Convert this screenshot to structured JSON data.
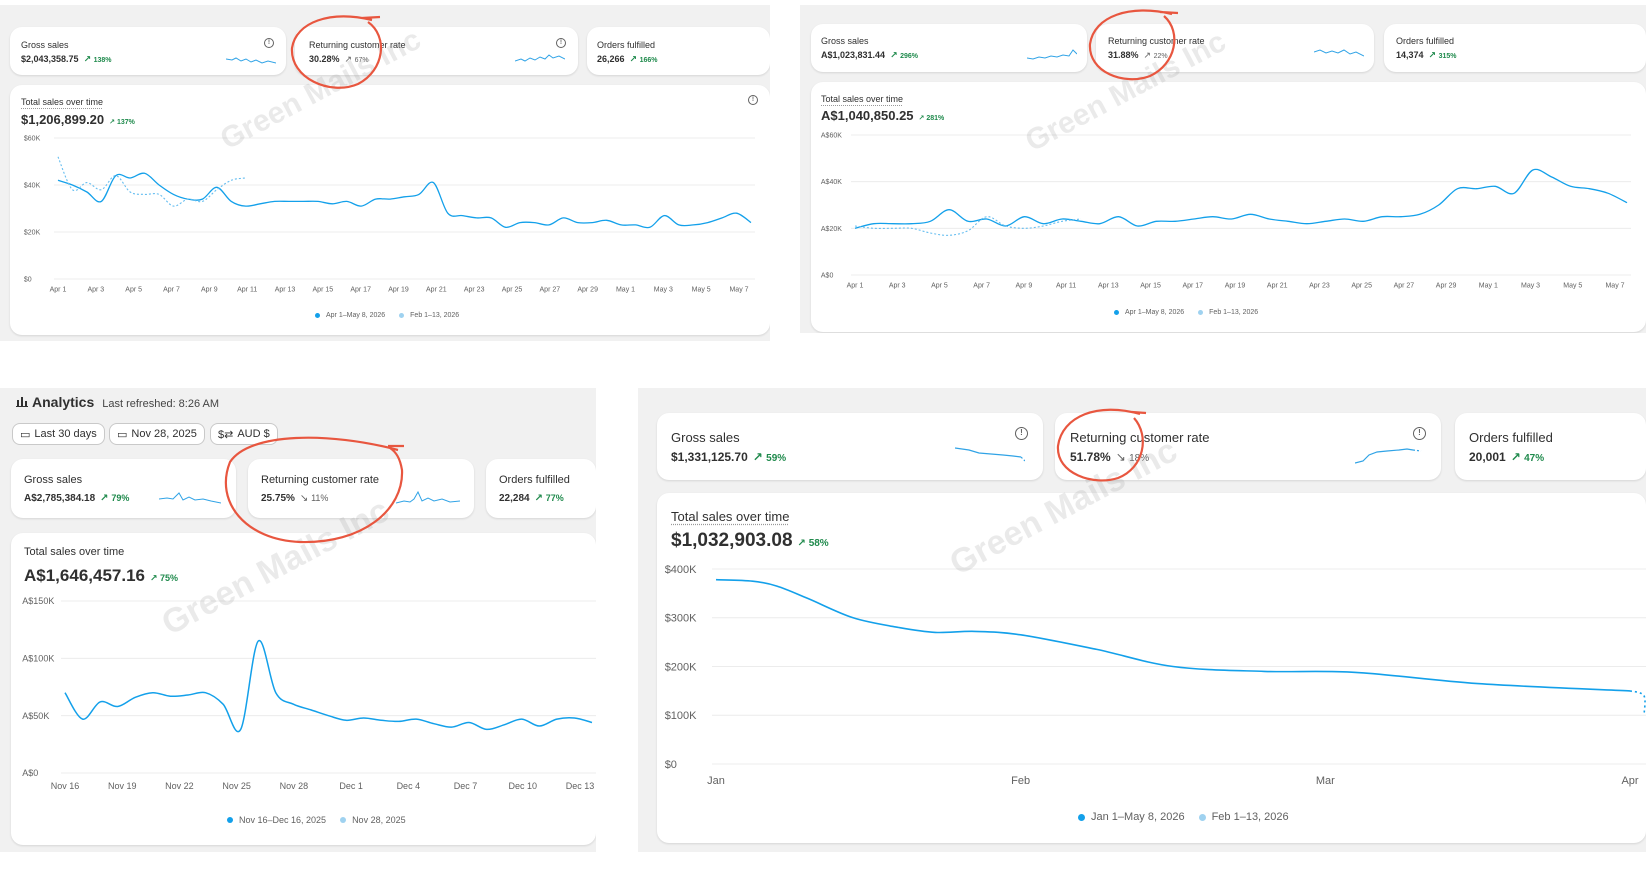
{
  "watermark": "Green Mails Inc",
  "panels": [
    {
      "metrics": [
        {
          "title": "Gross sales",
          "value": "$2,043,358.75",
          "change": "138%",
          "dir": "up"
        },
        {
          "title": "Returning customer rate",
          "value": "30.28%",
          "change": "67%",
          "dir": "up"
        },
        {
          "title": "Orders fulfilled",
          "value": "26,266",
          "change": "166%",
          "dir": "up"
        }
      ],
      "chart": {
        "title": "Total sales over time",
        "total": "$1,206,899.20",
        "change": "137%",
        "legend": [
          "Apr 1–May 8, 2026",
          "Feb 1–13, 2026"
        ]
      },
      "chart_data": {
        "type": "line",
        "title": "Total sales over time",
        "y_ticks": [
          "$60K",
          "$40K",
          "$20K",
          "$0"
        ],
        "ylim": [
          0,
          60000
        ],
        "x_ticks": [
          "Apr 1",
          "Apr 3",
          "Apr 5",
          "Apr 7",
          "Apr 9",
          "Apr 11",
          "Apr 13",
          "Apr 15",
          "Apr 17",
          "Apr 19",
          "Apr 21",
          "Apr 23",
          "Apr 25",
          "Apr 27",
          "Apr 29",
          "May 1",
          "May 3",
          "May 5",
          "May 7"
        ],
        "series": [
          {
            "name": "Apr 1–May 8, 2026",
            "style": "solid",
            "values": [
              42000,
              40000,
              37000,
              33000,
              44000,
              43000,
              45000,
              40000,
              36000,
              34000,
              34000,
              39000,
              33000,
              31000,
              32000,
              33000,
              33000,
              33000,
              33000,
              32000,
              33000,
              31000,
              34000,
              34000,
              35000,
              36000,
              41000,
              28000,
              27000,
              26000,
              26000,
              22000,
              24000,
              24000,
              23000,
              26000,
              24000,
              24000,
              25000,
              23000,
              23000,
              22000,
              27000,
              23000,
              23000,
              24000,
              26000,
              28000,
              24000
            ]
          },
          {
            "name": "Feb 1–13, 2026",
            "style": "dotted",
            "values": [
              52000,
              38000,
              41000,
              38000,
              44000,
              37000,
              36000,
              36000,
              31000,
              34000,
              33000,
              38000,
              42000,
              43000
            ]
          }
        ]
      }
    },
    {
      "metrics": [
        {
          "title": "Gross sales",
          "value": "A$1,023,831.44",
          "change": "296%",
          "dir": "up"
        },
        {
          "title": "Returning customer rate",
          "value": "31.88%",
          "change": "22%",
          "dir": "up"
        },
        {
          "title": "Orders fulfilled",
          "value": "14,374",
          "change": "315%",
          "dir": "up"
        }
      ],
      "chart": {
        "title": "Total sales over time",
        "total": "A$1,040,850.25",
        "change": "281%",
        "legend": [
          "Apr 1–May 8, 2026",
          "Feb 1–13, 2026"
        ]
      },
      "chart_data": {
        "type": "line",
        "title": "Total sales over time",
        "y_ticks": [
          "A$60K",
          "A$40K",
          "A$20K",
          "A$0"
        ],
        "ylim": [
          0,
          60000
        ],
        "x_ticks": [
          "Apr 1",
          "Apr 3",
          "Apr 5",
          "Apr 7",
          "Apr 9",
          "Apr 11",
          "Apr 13",
          "Apr 15",
          "Apr 17",
          "Apr 19",
          "Apr 21",
          "Apr 23",
          "Apr 25",
          "Apr 27",
          "Apr 29",
          "May 1",
          "May 3",
          "May 5",
          "May 7"
        ],
        "series": [
          {
            "name": "Apr 1–May 8, 2026",
            "style": "solid",
            "values": [
              20000,
              22000,
              22000,
              22000,
              23000,
              28000,
              23000,
              24000,
              21000,
              25000,
              22000,
              24000,
              23000,
              22000,
              25000,
              21000,
              23000,
              23000,
              24000,
              25000,
              24000,
              26000,
              24000,
              23000,
              22000,
              23000,
              24000,
              23000,
              25000,
              25000,
              26000,
              30000,
              37000,
              37000,
              38000,
              35000,
              45000,
              42000,
              38000,
              37000,
              35000,
              31000
            ]
          },
          {
            "name": "Feb 1–13, 2026",
            "style": "dotted",
            "values": [
              21000,
              20000,
              20000,
              20000,
              18000,
              17000,
              19000,
              25000,
              21000,
              20000,
              21000,
              23000,
              24000
            ]
          }
        ]
      }
    },
    {
      "header": {
        "title": "Analytics",
        "refreshed": "Last refreshed: 8:26 AM"
      },
      "filters": [
        {
          "icon": "calendar-icon",
          "label": "Last 30 days"
        },
        {
          "icon": "calendar-compare-icon",
          "label": "Nov 28, 2025"
        },
        {
          "icon": "currency-icon",
          "label": "AUD $"
        }
      ],
      "metrics": [
        {
          "title": "Gross sales",
          "value": "A$2,785,384.18",
          "change": "79%",
          "dir": "up"
        },
        {
          "title": "Returning customer rate",
          "value": "25.75%",
          "change": "11%",
          "dir": "down"
        },
        {
          "title": "Orders fulfilled",
          "value": "22,284",
          "change": "77%",
          "dir": "up"
        }
      ],
      "chart": {
        "title": "Total sales over time",
        "total": "A$1,646,457.16",
        "change": "75%",
        "legend": [
          "Nov 16–Dec 16, 2025",
          "Nov 28, 2025"
        ]
      },
      "chart_data": {
        "type": "line",
        "title": "Total sales over time",
        "y_ticks": [
          "A$150K",
          "A$100K",
          "A$50K",
          "A$0"
        ],
        "ylim": [
          0,
          150000
        ],
        "x_ticks": [
          "Nov 16",
          "Nov 19",
          "Nov 22",
          "Nov 25",
          "Nov 28",
          "Dec 1",
          "Dec 4",
          "Dec 7",
          "Dec 10",
          "Dec 13"
        ],
        "series": [
          {
            "name": "Nov 16–Dec 16, 2025",
            "style": "solid",
            "values": [
              70000,
              47000,
              62000,
              58000,
              66000,
              70000,
              67000,
              68000,
              70000,
              60000,
              38000,
              115000,
              70000,
              60000,
              55000,
              50000,
              46000,
              48000,
              46000,
              45000,
              47000,
              43000,
              40000,
              44000,
              38000,
              42000,
              47000,
              41000,
              47000,
              48000,
              44000
            ]
          },
          {
            "name": "Nov 28, 2025",
            "style": "dotted",
            "values": []
          }
        ]
      }
    },
    {
      "metrics": [
        {
          "title": "Gross sales",
          "value": "$1,331,125.70",
          "change": "59%",
          "dir": "up"
        },
        {
          "title": "Returning customer rate",
          "value": "51.78%",
          "change": "18%",
          "dir": "down"
        },
        {
          "title": "Orders fulfilled",
          "value": "20,001",
          "change": "47%",
          "dir": "up"
        }
      ],
      "chart": {
        "title": "Total sales over time",
        "total": "$1,032,903.08",
        "change": "58%",
        "legend": [
          "Jan 1–May 8, 2026",
          "Feb 1–13, 2026"
        ]
      },
      "chart_data": {
        "type": "line",
        "title": "Total sales over time",
        "y_ticks": [
          "$400K",
          "$300K",
          "$200K",
          "$100K",
          "$0"
        ],
        "ylim": [
          0,
          400000
        ],
        "x_ticks": [
          "Jan",
          "Feb",
          "Mar",
          "Apr"
        ],
        "series": [
          {
            "name": "Jan 1–May 8, 2026",
            "style": "solid",
            "x": [
              0,
              0.12,
              0.2,
              0.3,
              0.45,
              0.6,
              0.72,
              0.85,
              1.0,
              1.25,
              1.5,
              1.8,
              2.1,
              2.5,
              3.0
            ],
            "values": [
              378000,
              375000,
              365000,
              340000,
              300000,
              280000,
              270000,
              272000,
              265000,
              235000,
              200000,
              190000,
              188000,
              165000,
              150000
            ],
            "extend": {
              "x": [
                3.0,
                3.2,
                3.5
              ],
              "values": [
                150000,
                140000,
                100000
              ]
            }
          },
          {
            "name": "Feb 1–13, 2026",
            "style": "dotted",
            "values": []
          }
        ]
      }
    }
  ]
}
